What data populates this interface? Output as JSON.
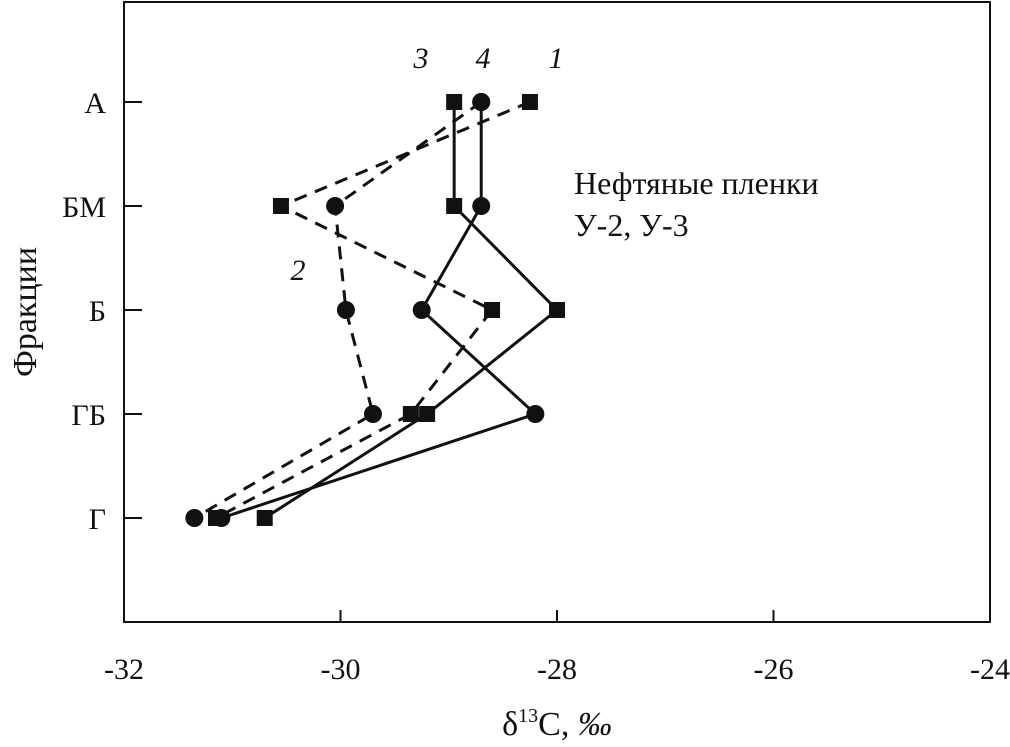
{
  "chart_data": {
    "type": "line",
    "xlabel_main": "δ",
    "xlabel_sup": "13",
    "xlabel_rest": "C, ",
    "xlabel_unit": "‰",
    "ylabel": "Фракции",
    "xlim": [
      -32,
      -24
    ],
    "xticks": [
      -32,
      -30,
      -28,
      -26,
      -24
    ],
    "xtick_labels": [
      "-32",
      "-30",
      "-28",
      "-26",
      "-24"
    ],
    "categories": [
      "А",
      "БМ",
      "Б",
      "ГБ",
      "Г"
    ],
    "annotation": [
      "Нефтяные пленки",
      "У-2, У-3"
    ],
    "series": [
      {
        "name": "1",
        "style": "dashed",
        "marker": "square",
        "x": [
          -28.25,
          -30.55,
          -28.6,
          -29.35,
          -31.15
        ]
      },
      {
        "name": "2",
        "style": "dashed",
        "marker": "circle",
        "x": [
          -28.7,
          -30.05,
          -29.95,
          -29.7,
          -31.35
        ]
      },
      {
        "name": "3",
        "style": "solid",
        "marker": "square",
        "x": [
          -28.95,
          -28.95,
          -28.0,
          -29.2,
          -30.7
        ]
      },
      {
        "name": "4",
        "style": "solid",
        "marker": "circle",
        "x": [
          -28.7,
          -28.7,
          -29.25,
          -28.2,
          -31.1
        ]
      }
    ]
  }
}
